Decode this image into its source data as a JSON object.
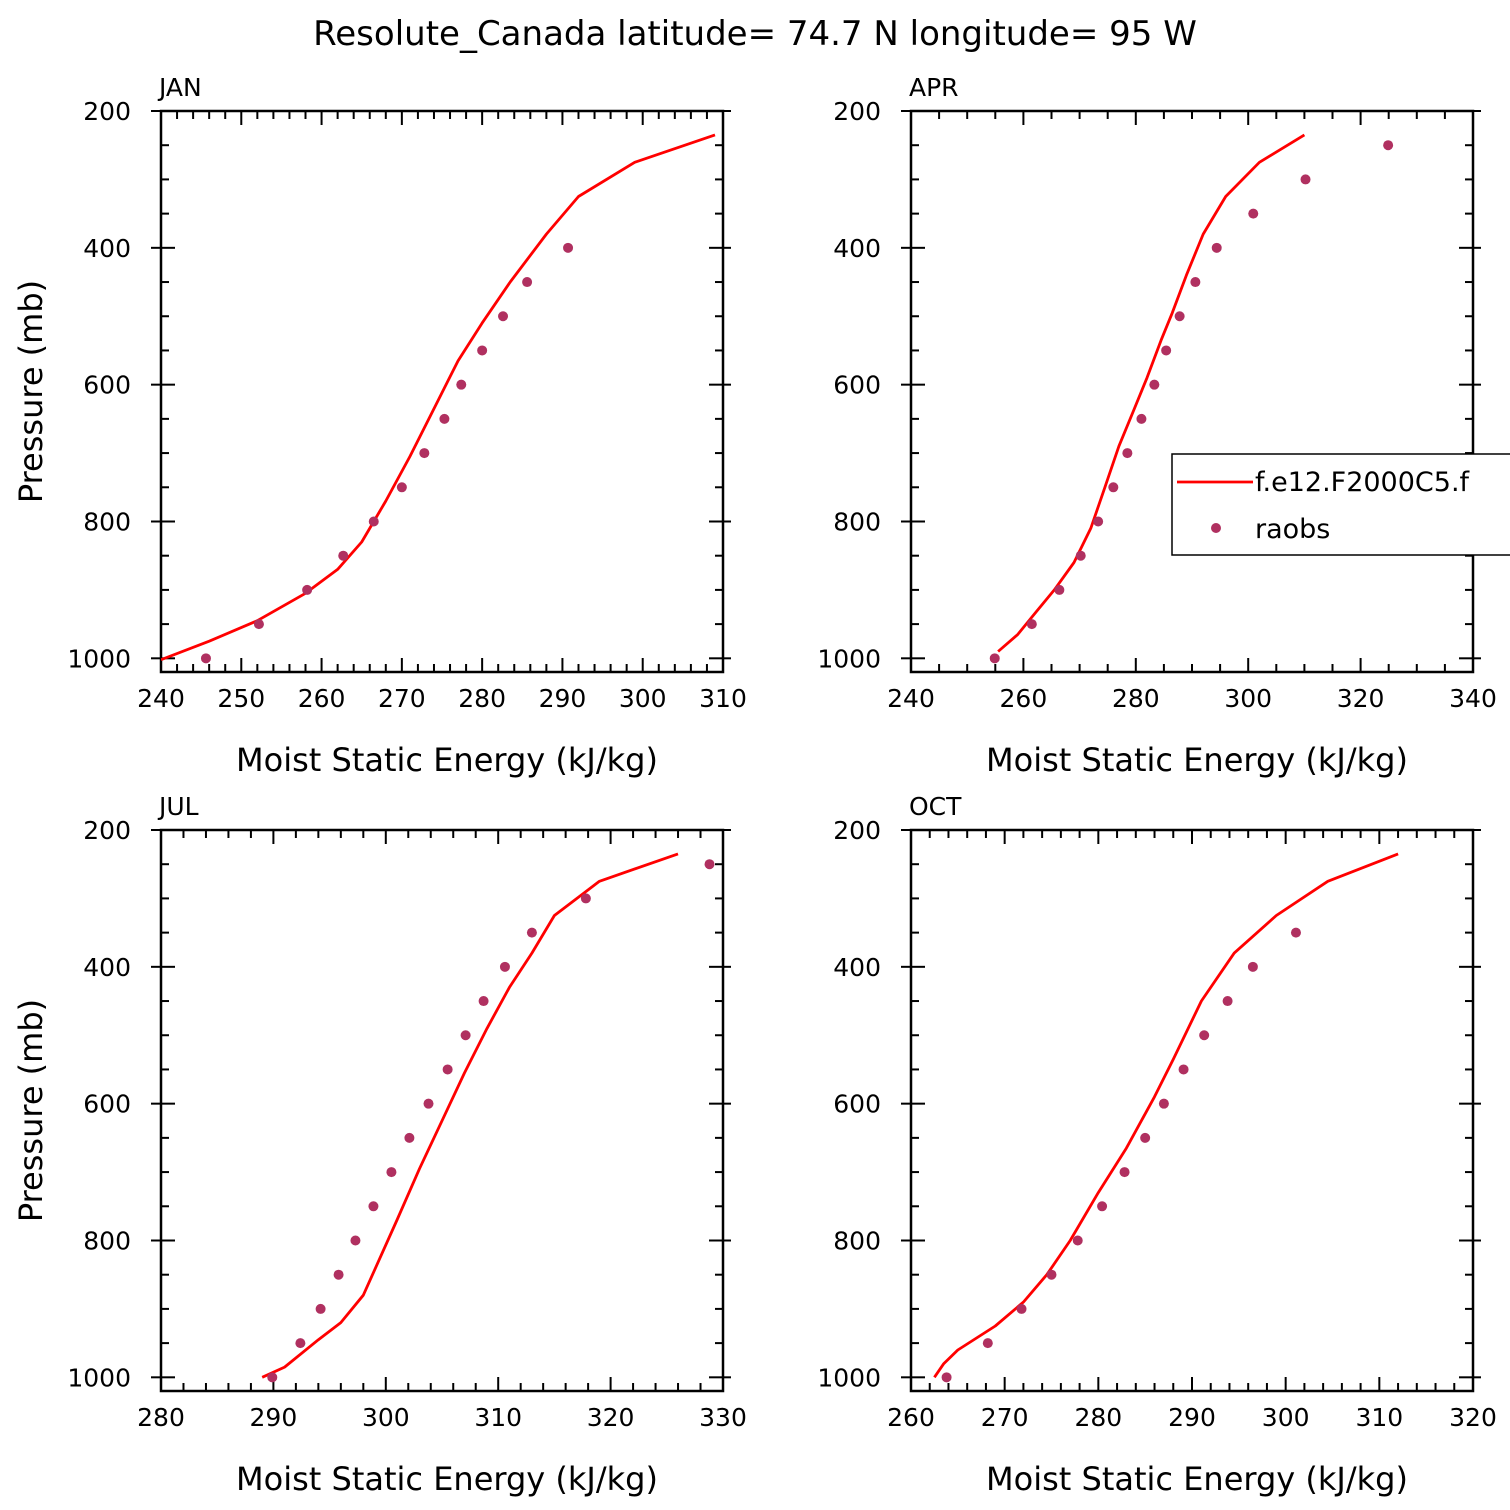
{
  "figure": {
    "title": "Resolute_Canada  latitude= 74.7 N longitude= 95 W"
  },
  "legend": {
    "entries": [
      {
        "label": "f.e12.F2000C5.f",
        "type": "line"
      },
      {
        "label": "raobs",
        "type": "marker"
      }
    ]
  },
  "colors": {
    "model": "#ff0000",
    "raobs": "#b03060",
    "axes": "#000000"
  },
  "chart_data": [
    {
      "type": "line",
      "panel_title": "JAN",
      "xlabel": "Moist Static Energy (kJ/kg)",
      "ylabel": "Pressure (mb)",
      "xlim": [
        240,
        310
      ],
      "xticks": [
        240,
        250,
        260,
        270,
        280,
        290,
        300,
        310
      ],
      "ylim": [
        1020,
        200
      ],
      "yticks": [
        200,
        400,
        600,
        800,
        1000
      ],
      "series": [
        {
          "name": "f.e12.F2000C5.f",
          "style": "line",
          "x": [
            240,
            246,
            252,
            258,
            262,
            265,
            268,
            271,
            274,
            277,
            280,
            283.5,
            288,
            292,
            299,
            309
          ],
          "y": [
            1002,
            975,
            945,
            905,
            870,
            830,
            770,
            705,
            635,
            565,
            510,
            450,
            380,
            325,
            275,
            235
          ]
        },
        {
          "name": "raobs",
          "style": "marker",
          "x": [
            245.6,
            252.2,
            258.2,
            262.7,
            266.5,
            270,
            272.8,
            275.3,
            277.4,
            280,
            282.6,
            285.6,
            290.7
          ],
          "y": [
            1000,
            950,
            900,
            850,
            800,
            750,
            700,
            650,
            600,
            550,
            500,
            450,
            400
          ]
        }
      ]
    },
    {
      "type": "line",
      "panel_title": "APR",
      "xlabel": "Moist Static Energy (kJ/kg)",
      "ylabel": "",
      "xlim": [
        240,
        340
      ],
      "xticks": [
        240,
        260,
        280,
        300,
        320,
        340
      ],
      "ylim": [
        1020,
        200
      ],
      "yticks": [
        200,
        400,
        600,
        800,
        1000
      ],
      "series": [
        {
          "name": "f.e12.F2000C5.f",
          "style": "line",
          "x": [
            255.5,
            259,
            262,
            265.5,
            269,
            272,
            274.5,
            277,
            279.5,
            282,
            284.5,
            286.5,
            289,
            292,
            296,
            302,
            310
          ],
          "y": [
            990,
            965,
            935,
            900,
            860,
            810,
            750,
            690,
            640,
            590,
            535,
            495,
            440,
            380,
            325,
            275,
            235
          ]
        },
        {
          "name": "raobs",
          "style": "marker",
          "x": [
            254.9,
            261.5,
            266.4,
            270.2,
            273.3,
            276,
            278.5,
            281,
            283.3,
            285.4,
            287.8,
            290.6,
            294.4,
            300.9,
            310.2,
            324.9
          ],
          "y": [
            1000,
            950,
            900,
            850,
            800,
            750,
            700,
            650,
            600,
            550,
            500,
            450,
            400,
            350,
            300,
            250
          ]
        }
      ]
    },
    {
      "type": "line",
      "panel_title": "JUL",
      "xlabel": "Moist Static Energy (kJ/kg)",
      "ylabel": "Pressure (mb)",
      "xlim": [
        280,
        330
      ],
      "xticks": [
        280,
        290,
        300,
        310,
        320,
        330
      ],
      "ylim": [
        1020,
        200
      ],
      "yticks": [
        200,
        400,
        600,
        800,
        1000
      ],
      "series": [
        {
          "name": "f.e12.F2000C5.f",
          "style": "line",
          "x": [
            289,
            291,
            294,
            296,
            298,
            301,
            303,
            305,
            307,
            309,
            311,
            313,
            315,
            319,
            326
          ],
          "y": [
            1000,
            985,
            945,
            920,
            880,
            770,
            695,
            625,
            555,
            490,
            430,
            380,
            325,
            275,
            235
          ]
        },
        {
          "name": "raobs",
          "style": "marker",
          "x": [
            289.9,
            292.4,
            294.2,
            295.8,
            297.3,
            298.9,
            300.5,
            302.1,
            303.8,
            305.5,
            307.1,
            308.7,
            310.6,
            313,
            317.8,
            328.8
          ],
          "y": [
            1000,
            950,
            900,
            850,
            800,
            750,
            700,
            650,
            600,
            550,
            500,
            450,
            400,
            350,
            300,
            250
          ]
        }
      ]
    },
    {
      "type": "line",
      "panel_title": "OCT",
      "xlabel": "Moist Static Energy (kJ/kg)",
      "ylabel": "",
      "xlim": [
        260,
        320
      ],
      "xticks": [
        260,
        270,
        280,
        290,
        300,
        310,
        320
      ],
      "ylim": [
        1020,
        200
      ],
      "yticks": [
        200,
        400,
        600,
        800,
        1000
      ],
      "series": [
        {
          "name": "f.e12.F2000C5.f",
          "style": "line",
          "x": [
            262.5,
            263.5,
            265,
            269,
            272,
            274.5,
            277,
            280,
            283,
            286,
            288,
            291,
            294.5,
            299,
            304.5,
            312
          ],
          "y": [
            1000,
            980,
            960,
            925,
            890,
            850,
            800,
            730,
            665,
            590,
            535,
            450,
            380,
            325,
            275,
            235
          ]
        },
        {
          "name": "raobs",
          "style": "marker",
          "x": [
            263.8,
            268.2,
            271.8,
            275,
            277.8,
            280.4,
            282.8,
            285,
            287,
            289.1,
            291.3,
            293.8,
            296.5,
            301.1
          ],
          "y": [
            1000,
            950,
            900,
            850,
            800,
            750,
            700,
            650,
            600,
            550,
            500,
            450,
            400,
            350
          ]
        }
      ]
    }
  ]
}
